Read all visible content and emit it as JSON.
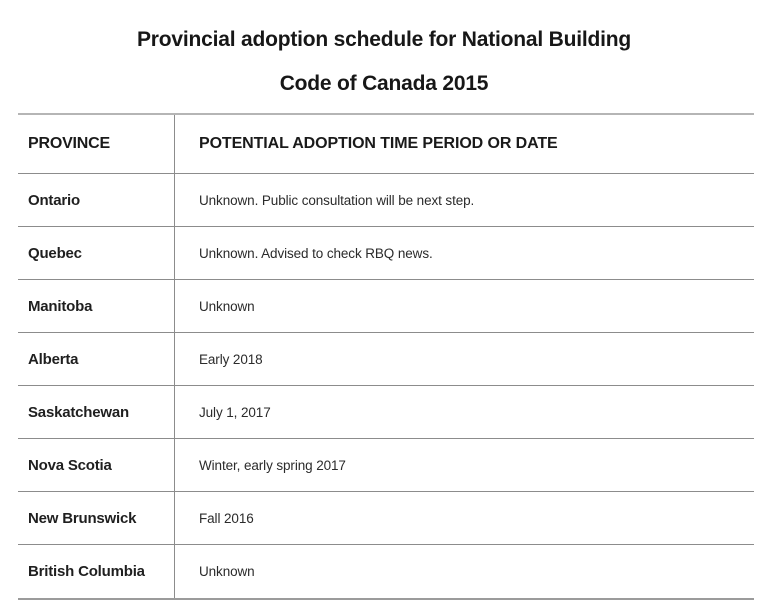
{
  "title": {
    "line1": "Provincial adoption schedule for National Building",
    "line2": "Code of Canada 2015"
  },
  "table": {
    "headers": {
      "province": "PROVINCE",
      "date": "POTENTIAL ADOPTION TIME PERIOD OR DATE"
    },
    "rows": [
      {
        "province": "Ontario",
        "date": "Unknown. Public consultation will be next step."
      },
      {
        "province": "Quebec",
        "date": "Unknown. Advised to check RBQ news."
      },
      {
        "province": "Manitoba",
        "date": "Unknown"
      },
      {
        "province": "Alberta",
        "date": "Early 2018"
      },
      {
        "province": "Saskatchewan",
        "date": "July 1, 2017"
      },
      {
        "province": "Nova Scotia",
        "date": "Winter, early spring 2017"
      },
      {
        "province": "New Brunswick",
        "date": "Fall 2016"
      },
      {
        "province": "British Columbia",
        "date": "Unknown"
      }
    ]
  },
  "colors": {
    "background": "#ffffff",
    "text": "#1c1c1c",
    "line_top": "#b5b5b5",
    "line_row": "#8c8c8c",
    "line_bottom": "#9b9b9b"
  }
}
